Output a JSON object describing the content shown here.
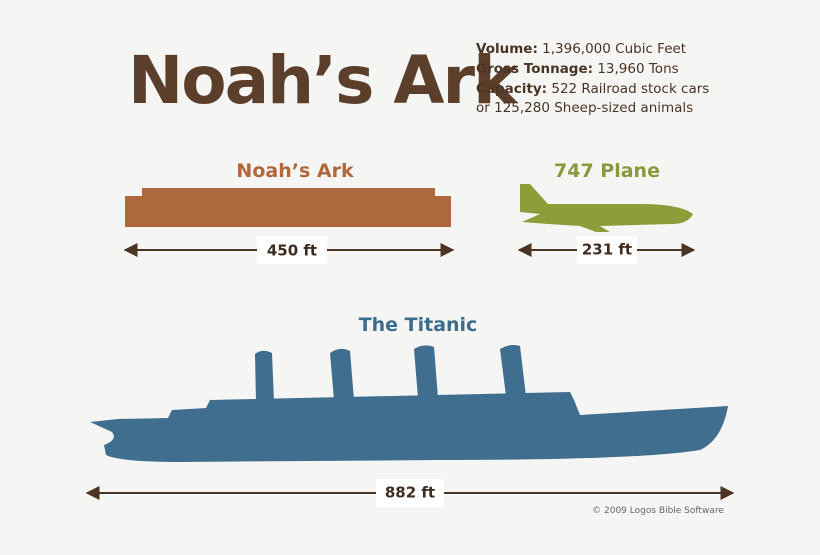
{
  "title": "Noah’s Ark",
  "specs": [
    {
      "label": "Volume:",
      "value": "1,396,000 Cubic Feet"
    },
    {
      "label": "Gross Tonnage:",
      "value": "13,960 Tons"
    },
    {
      "label": "Capacity:",
      "value": "522 Railroad stock cars"
    }
  ],
  "specs_continuation": "or 125,280 Sheep-sized animals",
  "vessels": [
    {
      "name": "Noah’s Ark",
      "length": "450 ft"
    },
    {
      "name": "747 Plane",
      "length": "231 ft"
    },
    {
      "name": "The Titanic",
      "length": "882 ft"
    }
  ],
  "credit": "© 2009 Logos Bible Software"
}
